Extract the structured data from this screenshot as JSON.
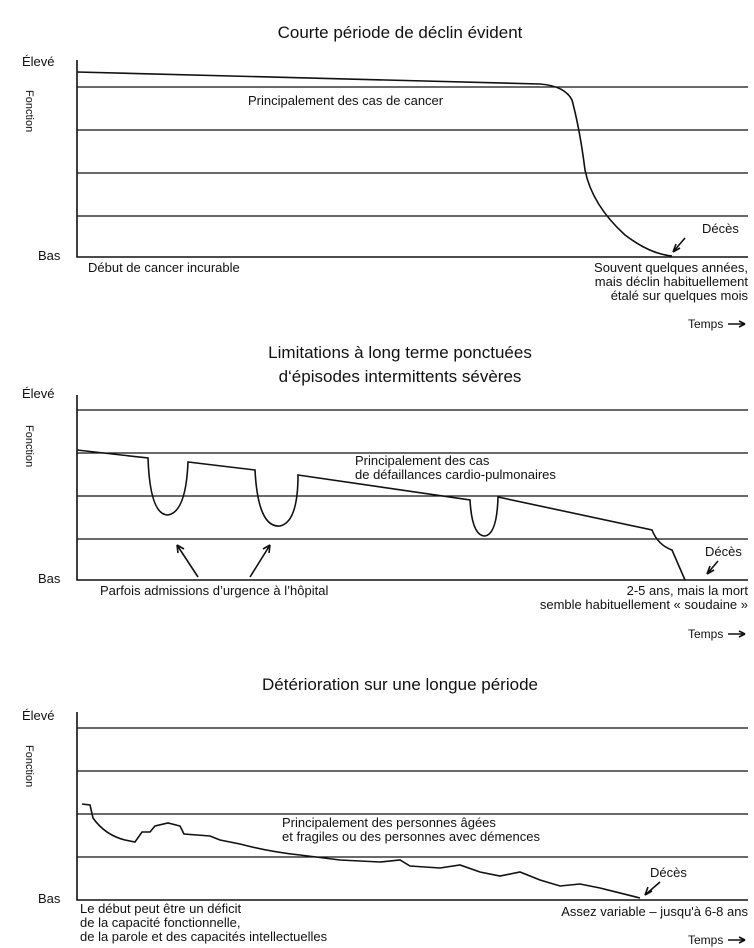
{
  "panels": [
    {
      "title": [
        "Courte période de déclin évident"
      ],
      "high": "Élevé",
      "low": "Bas",
      "y_label": "Fonction",
      "note": [
        "Principalement des cas de cancer"
      ],
      "death": "Décès",
      "left": [
        "Début de cancer incurable"
      ],
      "right": [
        "Souvent quelques années,",
        "mais déclin habituellement",
        "étalé sur quelques mois"
      ],
      "time": "Temps"
    },
    {
      "title": [
        "Limitations à long terme ponctuées",
        "d‘épisodes intermittents sévères"
      ],
      "high": "Élevé",
      "low": "Bas",
      "y_label": "Fonction",
      "note": [
        "Principalement des cas",
        "de défaillances cardio-pulmonaires"
      ],
      "death": "Décès",
      "left": [
        "Parfois admissions d’urgence à l’hôpital"
      ],
      "right": [
        "2-5 ans, mais la mort",
        "semble habituellement « soudaine »"
      ],
      "time": "Temps"
    },
    {
      "title": [
        "Détérioration sur une longue période"
      ],
      "high": "Élevé",
      "low": "Bas",
      "y_label": "Fonction",
      "note": [
        "Principalement des personnes âgées",
        "et fragiles ou des personnes avec démences"
      ],
      "death": "Décès",
      "left": [
        "Le début peut être un déficit",
        "de la capacité fonctionnelle,",
        "de la parole et des capacités intellectuelles"
      ],
      "right": [
        "Assez variable – jusqu'à 6-8 ans"
      ],
      "time": "Temps"
    }
  ]
}
